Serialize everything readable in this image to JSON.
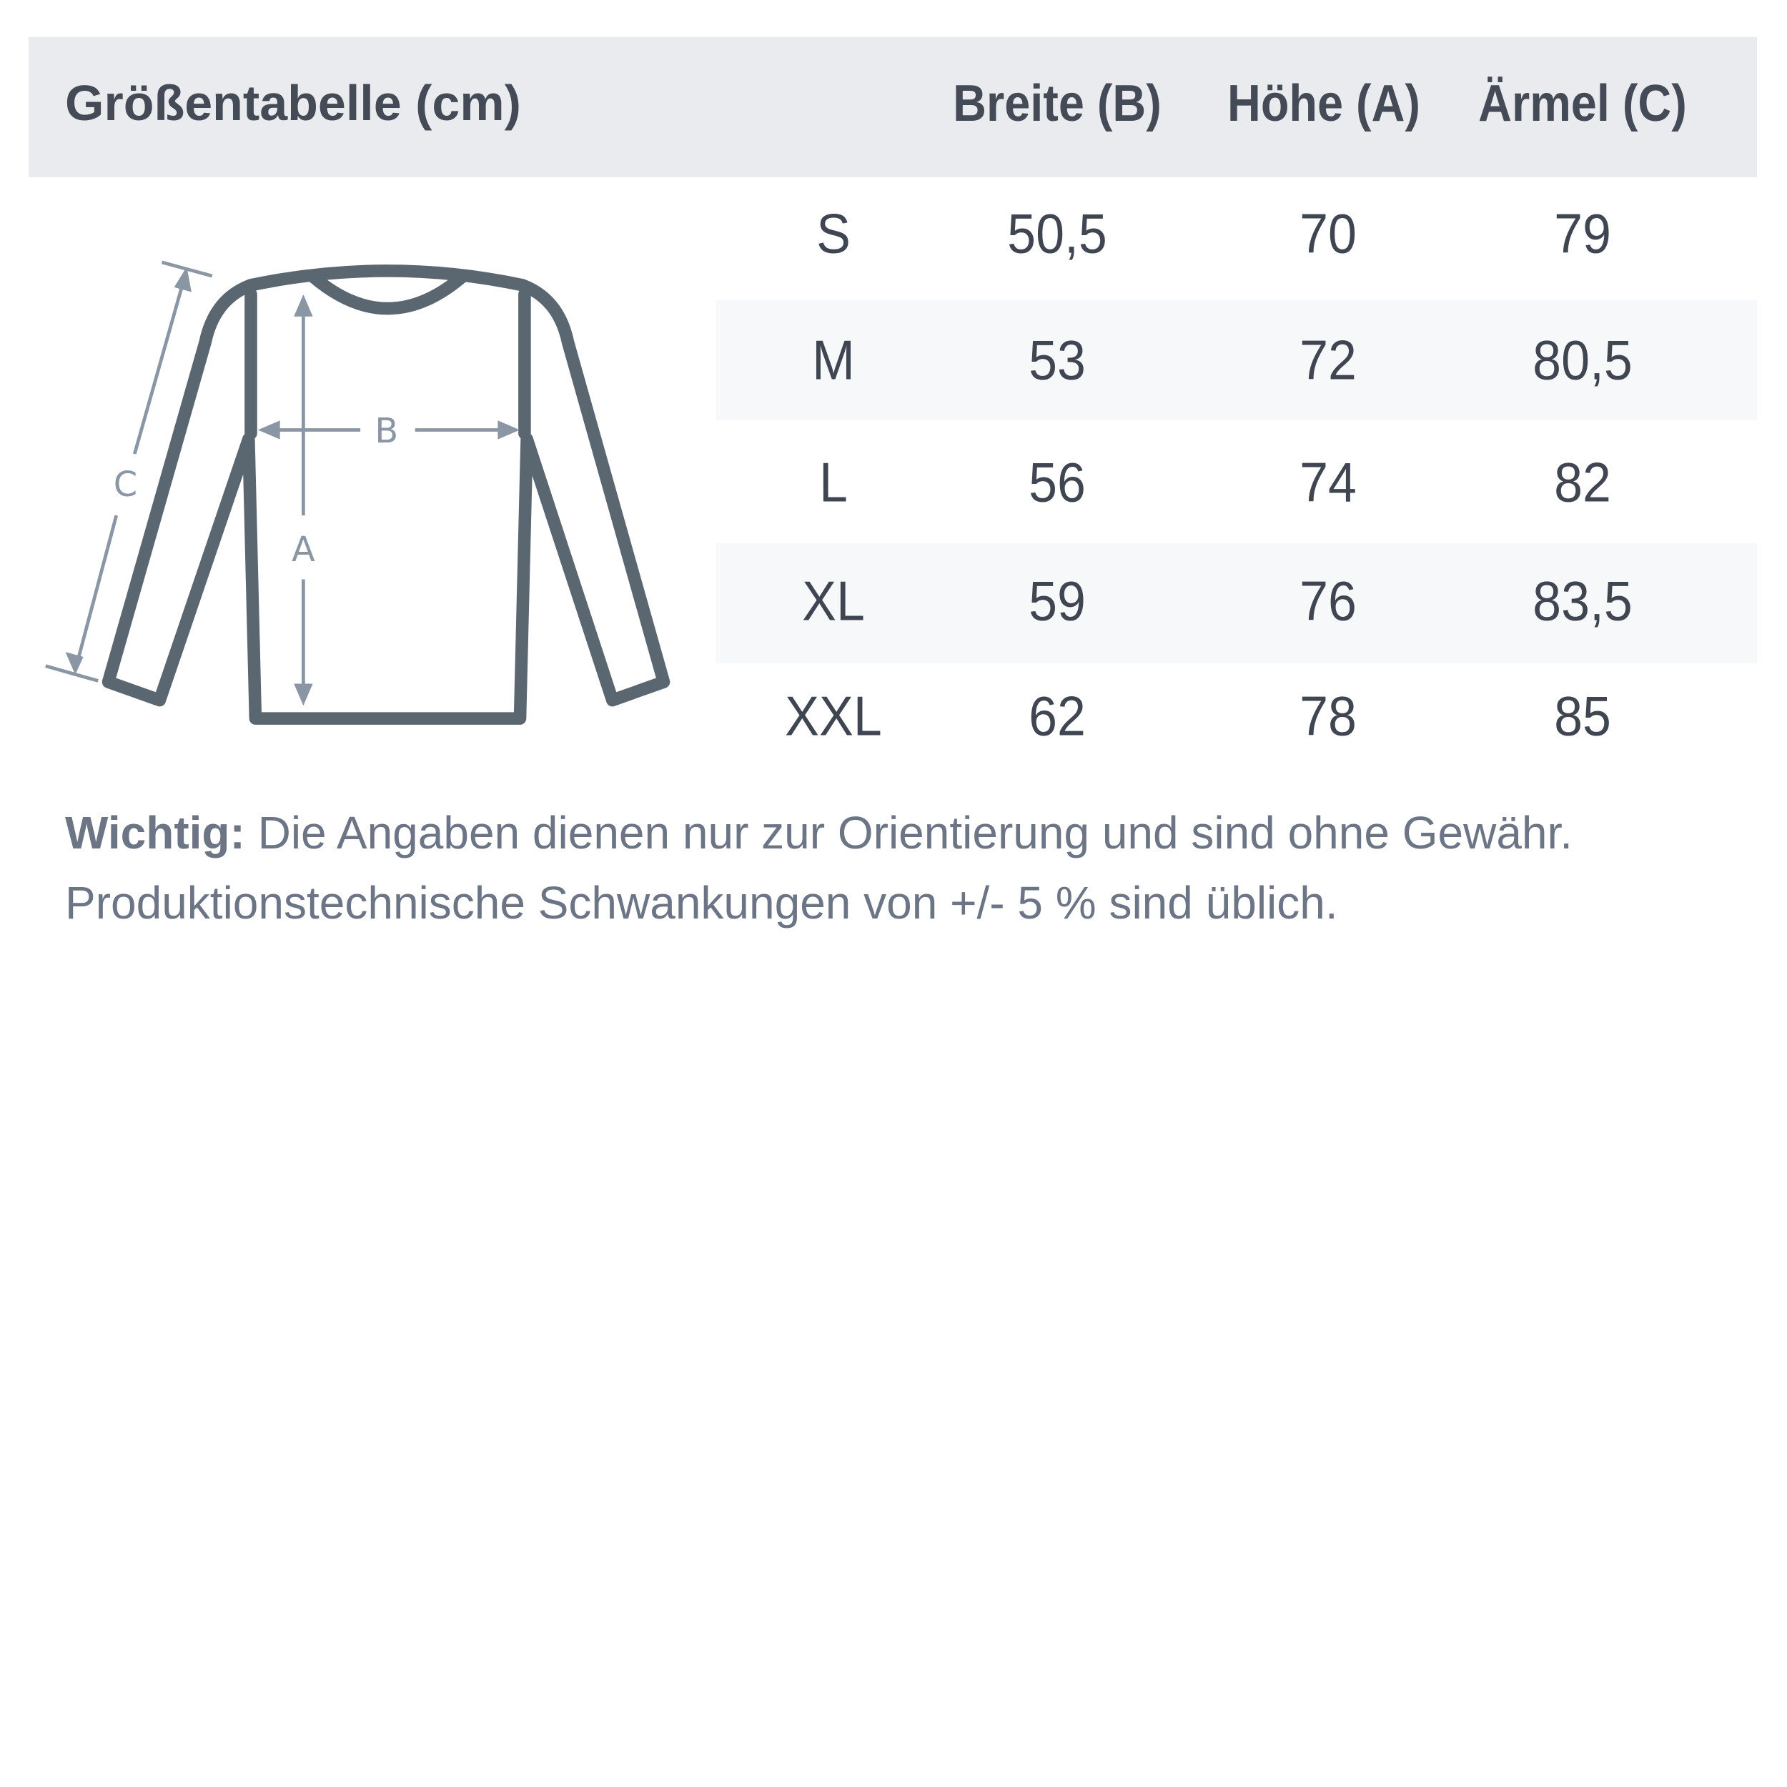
{
  "table": {
    "title": "Größentabelle (cm)",
    "columns": [
      "Breite (B)",
      "Höhe (A)",
      "Ärmel (C)"
    ],
    "rows": [
      {
        "size": "S",
        "breite": "50,5",
        "hoehe": "70",
        "aermel": "79"
      },
      {
        "size": "M",
        "breite": "53",
        "hoehe": "72",
        "aermel": "80,5"
      },
      {
        "size": "L",
        "breite": "56",
        "hoehe": "74",
        "aermel": "82"
      },
      {
        "size": "XL",
        "breite": "59",
        "hoehe": "76",
        "aermel": "83,5"
      },
      {
        "size": "XXL",
        "breite": "62",
        "hoehe": "78",
        "aermel": "85"
      }
    ]
  },
  "diagram": {
    "labels": {
      "a": "A",
      "b": "B",
      "c": "C"
    },
    "colors": {
      "outline": "#5a6670",
      "arrows": "#8a96a3"
    }
  },
  "note": {
    "bold": "Wichtig:",
    "line1": " Die Angaben dienen nur zur Orientierung und sind ohne Gewähr.",
    "line2": "Produktionstechnische Schwankungen von +/- 5 % sind üblich."
  },
  "colors": {
    "header_bg": "#e9ebee",
    "stripe_bg": "#f7f8fa",
    "text": "#3f4652",
    "note": "#6b7585"
  }
}
